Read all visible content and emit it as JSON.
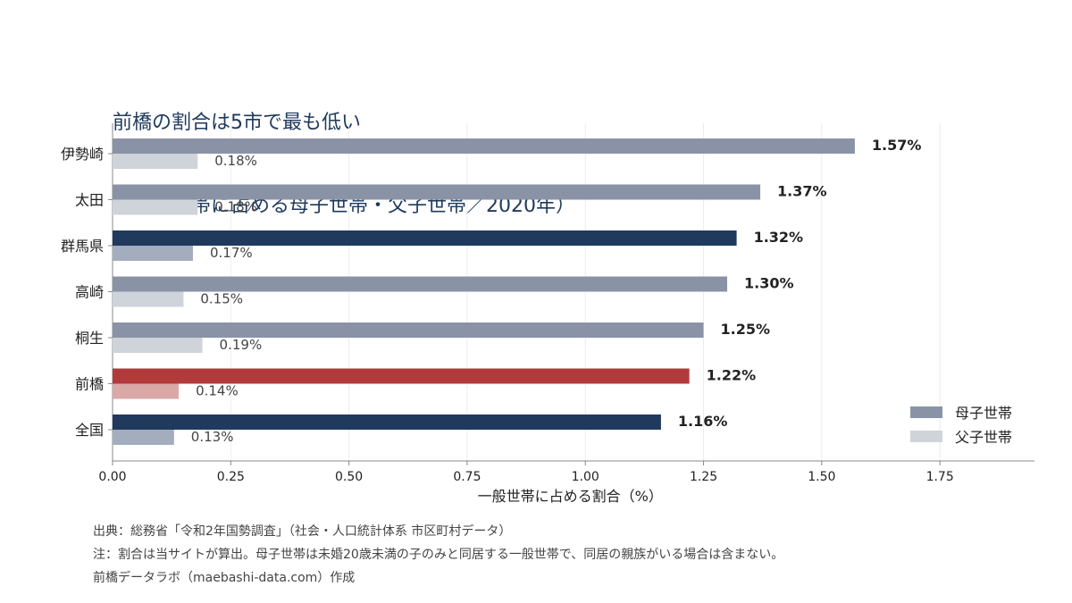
{
  "title": {
    "line1": "前橋の割合は5市で最も低い",
    "line2": "（一般世帯に占める母子世帯・父子世帯／2020年）"
  },
  "chart_data": {
    "type": "bar",
    "orientation": "horizontal",
    "categories": [
      "伊勢崎",
      "太田",
      "群馬県",
      "高崎",
      "桐生",
      "前橋",
      "全国"
    ],
    "series": [
      {
        "name": "母子世帯",
        "values": [
          1.57,
          1.37,
          1.32,
          1.3,
          1.25,
          1.22,
          1.16
        ],
        "labels": [
          "1.57%",
          "1.37%",
          "1.32%",
          "1.30%",
          "1.25%",
          "1.22%",
          "1.16%"
        ]
      },
      {
        "name": "父子世帯",
        "values": [
          0.18,
          0.18,
          0.17,
          0.15,
          0.19,
          0.14,
          0.13
        ],
        "labels": [
          "0.18%",
          "0.18%",
          "0.17%",
          "0.15%",
          "0.19%",
          "0.14%",
          "0.13%"
        ]
      }
    ],
    "xlabel": "一般世帯に占める割合（%）",
    "xlim": [
      0,
      1.95
    ],
    "xticks": [
      "0.00",
      "0.25",
      "0.50",
      "0.75",
      "1.00",
      "1.25",
      "1.50",
      "1.75"
    ],
    "grid": "vertical",
    "legend_position": "bottom-right",
    "colors": {
      "mother_default": "#8a93a6",
      "father_default": "#cfd3da",
      "mother_reference": "#1f3a5c",
      "father_reference": "#a3adbd",
      "mother_highlight": "#b33a3a",
      "father_highlight": "#dba8a8",
      "axis": "#888888",
      "grid": "#ececec"
    },
    "category_roles": [
      "default",
      "default",
      "reference",
      "default",
      "default",
      "highlight",
      "reference"
    ]
  },
  "footnotes": [
    "出典：総務省「令和2年国勢調査」（社会・人口統計体系 市区町村データ）",
    "注：割合は当サイトが算出。母子世帯は未婚20歳未満の子のみと同居する一般世帯で、同居の親族がいる場合は含まない。",
    "前橋データラボ（maebashi-data.com）作成"
  ]
}
